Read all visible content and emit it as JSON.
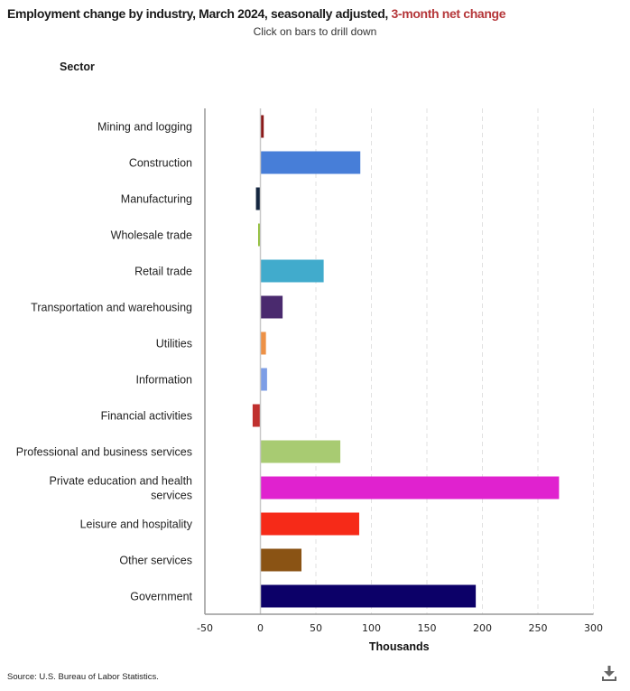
{
  "header": {
    "title_main": "Employment change by industry, March 2024, seasonally adjusted, ",
    "title_accent": "3-month net change",
    "subtitle": "Click on bars to drill down",
    "y_axis_heading": "Sector"
  },
  "footer": {
    "source": "Source: U.S. Bureau of Labor Statistics.",
    "download_icon": "download-icon"
  },
  "colors": {
    "title_accent": "#b5373a",
    "gridline": "#e2e2e2",
    "axis": "#999999"
  },
  "chart_data": {
    "type": "bar",
    "orientation": "horizontal",
    "title": "Employment change by industry, March 2024, seasonally adjusted, 3-month net change",
    "subtitle": "Click on bars to drill down",
    "xlabel": "Thousands",
    "ylabel": "Sector",
    "xlim": [
      -50,
      300
    ],
    "xticks": [
      -50,
      0,
      50,
      100,
      150,
      200,
      250,
      300
    ],
    "xtick_labels": [
      "-50",
      "0",
      "50",
      "100",
      "150",
      "200",
      "250",
      "300"
    ],
    "grid": true,
    "legend": "none",
    "categories": [
      "Mining and logging",
      "Construction",
      "Manufacturing",
      "Wholesale trade",
      "Retail trade",
      "Transportation and warehousing",
      "Utilities",
      "Information",
      "Financial activities",
      "Professional and business services",
      "Private education and health services",
      "Leisure and hospitality",
      "Other services",
      "Government"
    ],
    "category_label_lines": [
      [
        "Mining and logging"
      ],
      [
        "Construction"
      ],
      [
        "Manufacturing"
      ],
      [
        "Wholesale trade"
      ],
      [
        "Retail trade"
      ],
      [
        "Transportation and warehousing"
      ],
      [
        "Utilities"
      ],
      [
        "Information"
      ],
      [
        "Financial activities"
      ],
      [
        "Professional and business services"
      ],
      [
        "Private education and health",
        "services"
      ],
      [
        "Leisure and hospitality"
      ],
      [
        "Other services"
      ],
      [
        "Government"
      ]
    ],
    "values": [
      3,
      90,
      -4,
      -2,
      57,
      20,
      5,
      6,
      -7,
      72,
      269,
      89,
      37,
      194
    ],
    "bar_colors": [
      "#8b1a1a",
      "#477ed8",
      "#14263f",
      "#8cbd2e",
      "#41abcc",
      "#4a2a6e",
      "#ed9146",
      "#7d9ee6",
      "#c0302e",
      "#a8cb72",
      "#e022cf",
      "#f62a18",
      "#8a5314",
      "#0c0068"
    ]
  }
}
